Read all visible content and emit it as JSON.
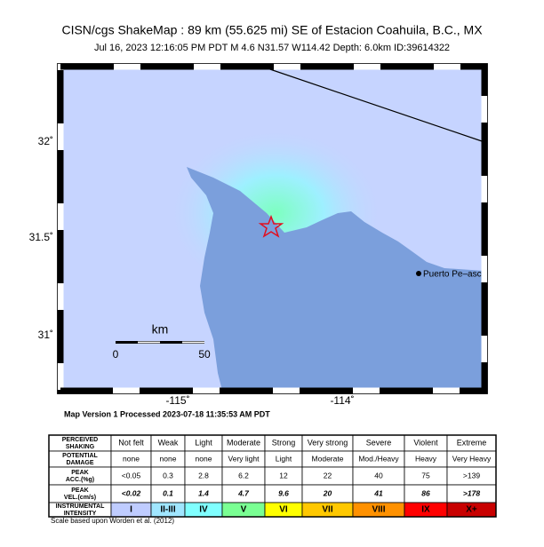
{
  "header": {
    "title": "CISN/cgs ShakeMap : 89 km (55.625 mi) SE of Estacion Coahuila, B.C., MX",
    "subtitle": "Jul 16, 2023 12:16:05 PM PDT   M 4.6   N31.57 W114.42   Depth: 6.0km   ID:39614322"
  },
  "map": {
    "lat_labels": [
      "32˚",
      "31.5˚",
      "31˚"
    ],
    "lon_labels": [
      "-115˚",
      "-114˚"
    ],
    "scale": {
      "unit": "km",
      "start": "0",
      "end": "50"
    },
    "place": "Puerto Pe–asco",
    "version": "Map Version 1 Processed 2023-07-18 11:35:53 AM PDT"
  },
  "table": {
    "rows": [
      [
        "PERCEIVED SHAKING",
        "Not felt",
        "Weak",
        "Light",
        "Moderate",
        "Strong",
        "Very strong",
        "Severe",
        "Violent",
        "Extreme"
      ],
      [
        "POTENTIAL DAMAGE",
        "none",
        "none",
        "none",
        "Very light",
        "Light",
        "Moderate",
        "Mod./Heavy",
        "Heavy",
        "Very Heavy"
      ],
      [
        "PEAK ACC.(%g)",
        "<0.05",
        "0.3",
        "2.8",
        "6.2",
        "12",
        "22",
        "40",
        "75",
        ">139"
      ],
      [
        "PEAK VEL.(cm/s)",
        "<0.02",
        "0.1",
        "1.4",
        "4.7",
        "9.6",
        "20",
        "41",
        "86",
        ">178"
      ],
      [
        "INSTRUMENTAL INTENSITY",
        "I",
        "II-III",
        "IV",
        "V",
        "VI",
        "VII",
        "VIII",
        "IX",
        "X+"
      ]
    ]
  },
  "footer": "Scale based upon Worden et al. (2012)"
}
